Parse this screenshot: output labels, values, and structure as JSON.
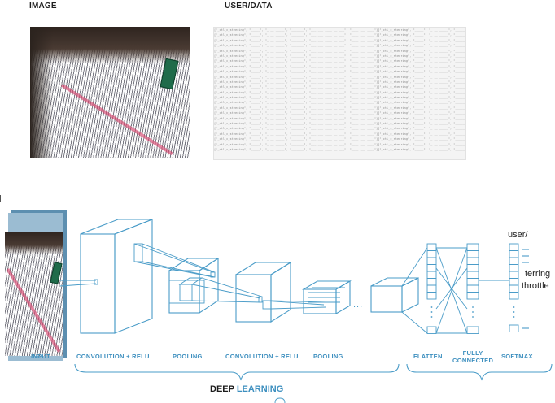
{
  "top": {
    "image_header": "IMAGE",
    "data_header": "USER/DATA"
  },
  "pipeline": {
    "labels": {
      "input": "INPUT",
      "conv1": "CONVOLUTION + RELU",
      "pool1": "POOLING",
      "conv2": "CONVOLUTION + RELU",
      "pool2": "POOLING",
      "flatten": "FLATTEN",
      "fc_line1": "FULLY",
      "fc_line2": "CONNECTED",
      "softmax": "SOFTMAX"
    },
    "ellipsis": "...",
    "outputs": {
      "user": "user/",
      "steering": "terring",
      "throttle": "throttle"
    },
    "footer": {
      "deep": "DEEP",
      "learning": "LEARNING"
    }
  },
  "colors": {
    "accent": "#3d8fbf",
    "line": "#4a9cc8",
    "text": "#1c1c1c"
  }
}
